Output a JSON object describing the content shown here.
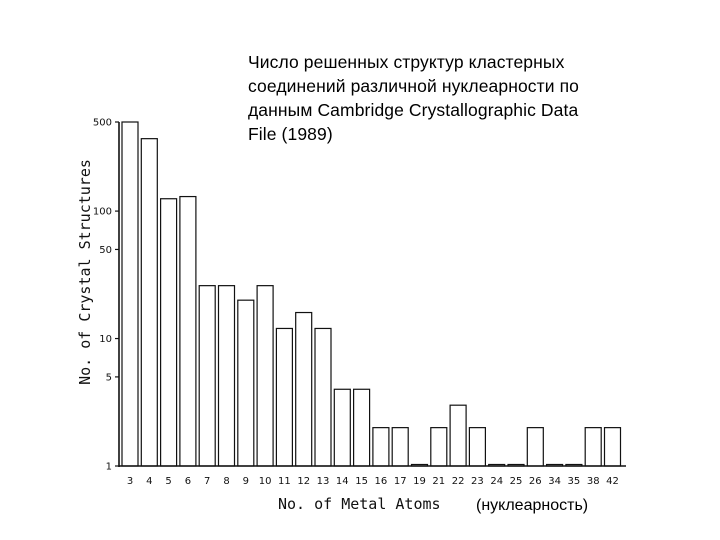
{
  "chart_data": {
    "type": "bar",
    "title_lines": [
      "Число решенных структур кластерных",
      "соединений различной нуклеарности по",
      "данным Cambridge Crystallographic Data",
      "File (1989)"
    ],
    "xlabel": "No. of Metal Atoms",
    "xlabel_note": "(нуклеарность)",
    "ylabel": "No. of Crystal Structures",
    "yscale": "log",
    "ylim": [
      1,
      500
    ],
    "yticks": [
      {
        "value": 1,
        "label": "1"
      },
      {
        "value": 5,
        "label": "5"
      },
      {
        "value": 10,
        "label": "10"
      },
      {
        "value": 50,
        "label": "50"
      },
      {
        "value": 100,
        "label": "100"
      },
      {
        "value": 500,
        "label": "500"
      }
    ],
    "categories": [
      "3",
      "4",
      "5",
      "6",
      "7",
      "8",
      "9",
      "10",
      "11",
      "12",
      "13",
      "14",
      "15",
      "16",
      "17",
      "19",
      "21",
      "22",
      "23",
      "24",
      "25",
      "26",
      "34",
      "35",
      "38",
      "42"
    ],
    "values": [
      500,
      370,
      125,
      130,
      26,
      26,
      20,
      26,
      12,
      16,
      12,
      4,
      4,
      2,
      2,
      1,
      2,
      3,
      2,
      1,
      1,
      2,
      1,
      1,
      2,
      2
    ]
  }
}
